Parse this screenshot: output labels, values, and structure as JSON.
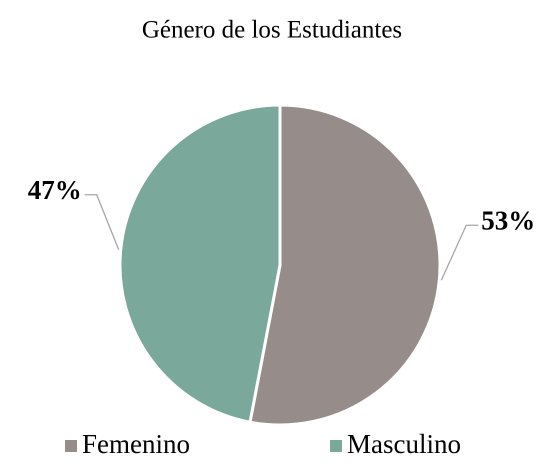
{
  "chart_data": {
    "type": "pie",
    "title": "Género de los Estudiantes",
    "categories": [
      "Femenino",
      "Masculino"
    ],
    "values": [
      53,
      47
    ],
    "value_labels": [
      "53%",
      "47%"
    ],
    "colors": [
      "#968c89",
      "#7aa89b"
    ],
    "legend": "bottom"
  }
}
